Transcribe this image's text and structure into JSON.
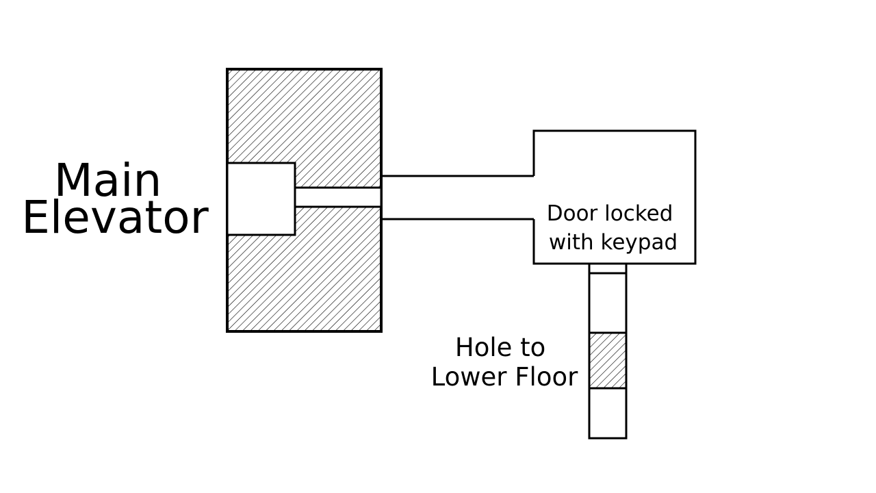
{
  "map": {
    "labels": {
      "main_elevator": [
        "Main",
        "Elevator"
      ],
      "door": [
        "Door locked",
        "with keypad"
      ],
      "hole": [
        "Hole to",
        "Lower Floor"
      ]
    },
    "colors": {
      "stroke": "#000000",
      "background": "#ffffff",
      "hatch": "#000000"
    }
  }
}
